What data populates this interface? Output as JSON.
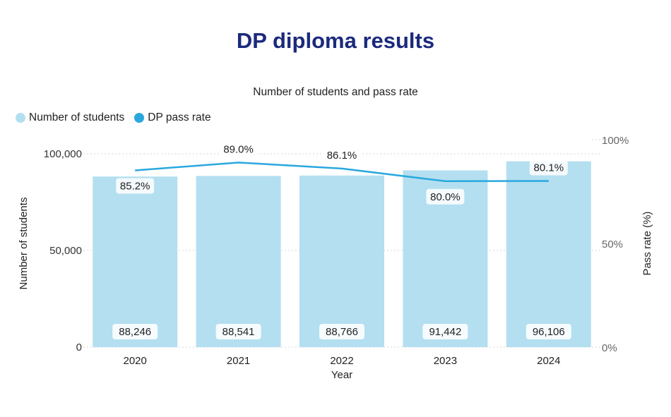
{
  "title": "DP diploma results",
  "chart_data": {
    "type": "bar",
    "subtitle": "Number of students and pass rate",
    "categories": [
      "2020",
      "2021",
      "2022",
      "2023",
      "2024"
    ],
    "series": [
      {
        "name": "Number of students",
        "kind": "bar",
        "axis": "left",
        "color": "#b3dff0",
        "values": [
          88246,
          88541,
          88766,
          91442,
          96106
        ],
        "labels": [
          "88,246",
          "88,541",
          "88,766",
          "91,442",
          "96,106"
        ]
      },
      {
        "name": "DP pass rate",
        "kind": "line",
        "axis": "right",
        "color": "#2aa8de",
        "values": [
          85.2,
          89.0,
          86.1,
          80.0,
          80.1
        ],
        "labels": [
          "85.2%",
          "89.0%",
          "86.1%",
          "80.0%",
          "80.1%"
        ]
      }
    ],
    "xlabel": "Year",
    "ylabel": "Number of students",
    "ylabel_right": "Pass rate (%)",
    "ylim": [
      0,
      100000
    ],
    "ylim_right": [
      0,
      100
    ],
    "yticks": [
      "0",
      "50,000",
      "100,000"
    ],
    "yticks_right": [
      "0%",
      "50%",
      "100%"
    ],
    "grid": "dotted horizontal",
    "legend_position": "top-left"
  }
}
